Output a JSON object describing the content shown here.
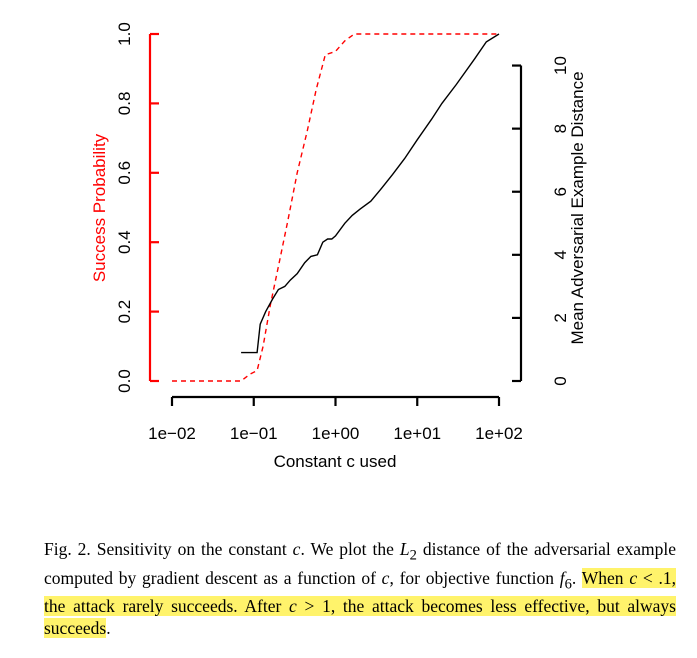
{
  "colors": {
    "success": "#ff0000",
    "distance": "#000000",
    "highlight": "#fff36b"
  },
  "chart_data": {
    "type": "line",
    "x_scale": "log",
    "xlabel": "Constant c used",
    "x_ticks": [
      "1e−02",
      "1e−01",
      "1e+00",
      "1e+01",
      "1e+02"
    ],
    "x_tick_values": [
      0.01,
      0.1,
      1,
      10,
      100
    ],
    "xlim": [
      0.01,
      100
    ],
    "left_axis": {
      "label": "Success Probability",
      "ticks": [
        "0.0",
        "0.2",
        "0.4",
        "0.6",
        "0.8",
        "1.0"
      ],
      "tick_values": [
        0,
        0.2,
        0.4,
        0.6,
        0.8,
        1.0
      ],
      "ylim": [
        0,
        1
      ],
      "color": "#ff0000"
    },
    "right_axis": {
      "label": "Mean Adversarial Example Distance",
      "ticks": [
        "0",
        "2",
        "4",
        "6",
        "8",
        "10"
      ],
      "tick_values": [
        0,
        2,
        4,
        6,
        8,
        10
      ],
      "ylim": [
        0,
        11
      ],
      "color": "#000000"
    },
    "series": [
      {
        "axis": "left",
        "style": "dashed",
        "x": [
          0.01,
          0.07,
          0.09,
          0.11,
          0.13,
          0.16,
          0.2,
          0.26,
          0.34,
          0.45,
          0.58,
          0.75,
          1.0,
          1.3,
          1.7,
          2.5,
          5,
          10,
          30,
          100
        ],
        "y": [
          0,
          0,
          0.02,
          0.03,
          0.1,
          0.22,
          0.33,
          0.46,
          0.6,
          0.72,
          0.84,
          0.94,
          0.95,
          0.98,
          1.0,
          1.0,
          1.0,
          1.0,
          1.0,
          1.0
        ]
      },
      {
        "axis": "right",
        "style": "solid",
        "x": [
          0.07,
          0.09,
          0.11,
          0.12,
          0.14,
          0.17,
          0.2,
          0.24,
          0.28,
          0.34,
          0.42,
          0.5,
          0.6,
          0.7,
          0.8,
          0.9,
          1.0,
          1.3,
          1.6,
          2,
          2.7,
          3.5,
          5,
          7,
          10,
          15,
          20,
          30,
          50,
          70,
          100
        ],
        "y": [
          0.9,
          0.9,
          0.9,
          1.8,
          2.2,
          2.6,
          2.9,
          3.0,
          3.2,
          3.4,
          3.75,
          3.95,
          4.0,
          4.4,
          4.5,
          4.5,
          4.6,
          5.0,
          5.25,
          5.45,
          5.7,
          6.05,
          6.55,
          7.05,
          7.65,
          8.3,
          8.8,
          9.4,
          10.2,
          10.75,
          11.0
        ]
      }
    ]
  },
  "caption": {
    "prefix": "Fig. 2.  Sensitivity on the constant ",
    "c1": "c",
    "mid1": ". We plot the ",
    "L": "L",
    "L_sub": "2",
    "mid2": " distance of the adversarial example computed by gradient descent as a function of ",
    "c2": "c",
    "mid3": ", for objective function ",
    "f": "f",
    "f_sub": "6",
    "mid4": ". ",
    "hl1": "When ",
    "hl_c1": "c",
    "hl_lt": " < .1, the attack rarely succeeds. After ",
    "hl_c2": "c",
    "hl_gt": " > 1, the attack becomes less effective, but always succeeds",
    "suffix": "."
  }
}
